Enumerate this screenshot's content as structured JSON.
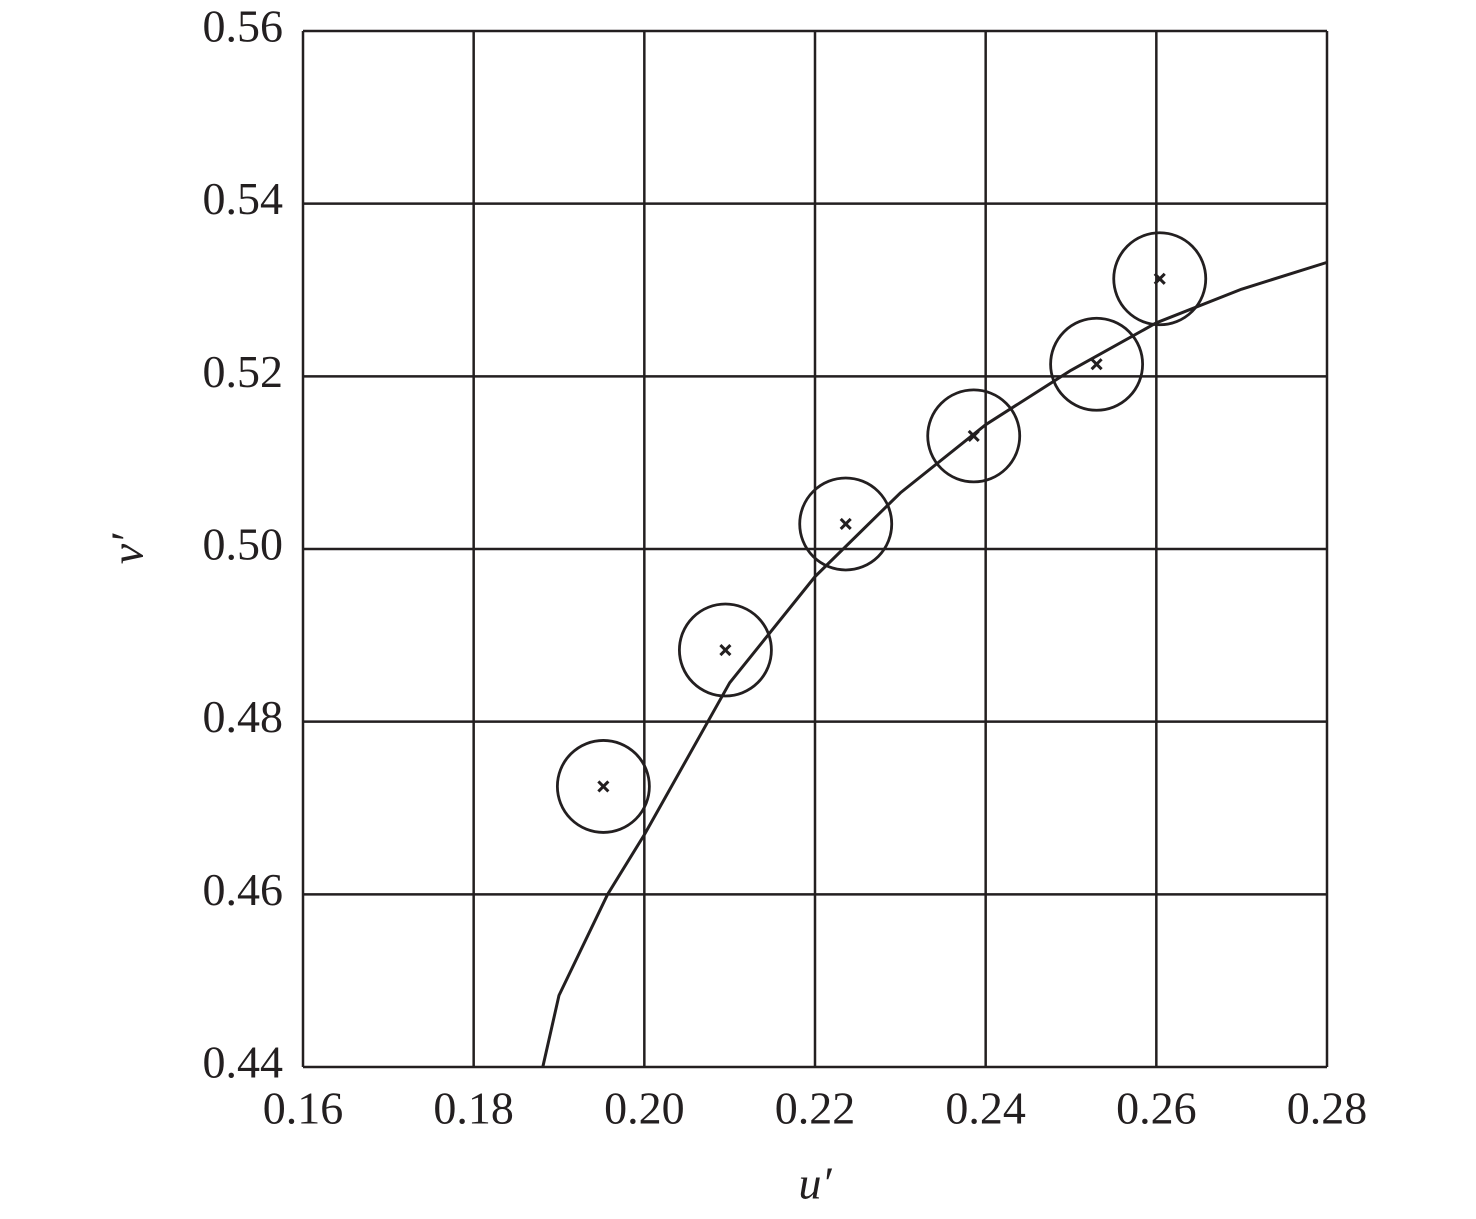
{
  "chart_data": {
    "type": "scatter",
    "x_label": "u′",
    "y_label": "v′",
    "xlim": [
      0.16,
      0.28
    ],
    "ylim": [
      0.44,
      0.56
    ],
    "xticks": [
      0.16,
      0.18,
      {
        "value": 0.2,
        "label": "0.20"
      },
      0.22,
      0.24,
      0.26,
      0.28
    ],
    "yticks": [
      0.44,
      0.46,
      0.48,
      {
        "value": 0.5,
        "label": "0.50"
      },
      0.52,
      0.54,
      0.56
    ],
    "grid": true,
    "series": [
      {
        "type": "scatter",
        "color": "#231f20",
        "x": [
          0.1952,
          0.2095,
          0.2236,
          0.2386,
          0.253,
          0.2604
        ],
        "values": [
          0.4725,
          0.4883,
          0.5029,
          0.5131,
          0.5214,
          0.5313
        ]
      },
      {
        "type": "line",
        "color": "#231f20",
        "x": [
          0.1881,
          0.19,
          0.1957,
          0.2,
          0.21,
          0.22,
          0.23,
          0.24,
          0.25,
          0.26,
          0.27,
          0.28
        ],
        "values": [
          0.44,
          0.4483,
          0.46,
          0.4669,
          0.4845,
          0.4968,
          0.5065,
          0.5144,
          0.5207,
          0.5262,
          0.5301,
          0.5332
        ]
      }
    ]
  }
}
